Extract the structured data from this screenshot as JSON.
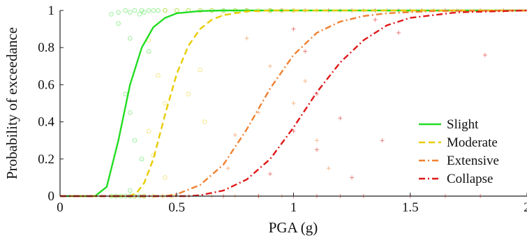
{
  "chart_data": {
    "type": "line",
    "xlabel": "PGA (g)",
    "ylabel": "Probability of exceedance",
    "xlim": [
      0,
      2
    ],
    "ylim": [
      0,
      1
    ],
    "xticks": [
      0,
      0.5,
      1,
      1.5,
      2
    ],
    "xtick_labels": [
      "0",
      "0.5",
      "1",
      "1.5",
      "2"
    ],
    "yticks": [
      0,
      0.2,
      0.4,
      0.6,
      0.8,
      1
    ],
    "ytick_labels": [
      "0",
      "0.2",
      "0.4",
      "0.6",
      "0.8",
      "1"
    ],
    "grid": false,
    "legend_position": "bottom-right",
    "series": [
      {
        "name": "Slight",
        "color": "#22dd22",
        "style": "solid",
        "marker": "circle",
        "curve": {
          "x": [
            0.15,
            0.2,
            0.25,
            0.3,
            0.35,
            0.4,
            0.45,
            0.5,
            0.6,
            0.7,
            0.8,
            1.0,
            2.0
          ],
          "y": [
            0,
            0.05,
            0.3,
            0.6,
            0.8,
            0.91,
            0.96,
            0.985,
            0.997,
            1,
            1,
            1,
            1
          ]
        },
        "points": [
          [
            0.22,
            0.98
          ],
          [
            0.25,
            0.99
          ],
          [
            0.28,
            1
          ],
          [
            0.3,
            0.99
          ],
          [
            0.32,
            1
          ],
          [
            0.34,
            0.98
          ],
          [
            0.35,
            1
          ],
          [
            0.36,
            0.99
          ],
          [
            0.38,
            1
          ],
          [
            0.4,
            1
          ],
          [
            0.42,
            1
          ],
          [
            0.45,
            1
          ],
          [
            0.5,
            1
          ],
          [
            0.55,
            1
          ],
          [
            0.6,
            1
          ],
          [
            0.65,
            1
          ],
          [
            0.7,
            1
          ],
          [
            0.75,
            1
          ],
          [
            0.8,
            1
          ],
          [
            0.9,
            1
          ],
          [
            0.25,
            0.93
          ],
          [
            0.3,
            0.85
          ],
          [
            0.38,
            0.78
          ],
          [
            0.28,
            0.55
          ],
          [
            0.3,
            0.45
          ],
          [
            0.32,
            0.3
          ],
          [
            0.35,
            0.2
          ],
          [
            0.3,
            0.03
          ],
          [
            0.22,
            0
          ],
          [
            0.24,
            0
          ],
          [
            0.26,
            0
          ],
          [
            0.28,
            0
          ],
          [
            0.3,
            0
          ],
          [
            0.32,
            0
          ],
          [
            0.34,
            0
          ],
          [
            0.36,
            0
          ]
        ]
      },
      {
        "name": "Moderate",
        "color": "#e8cc00",
        "style": "dashed",
        "marker": "circle",
        "curve": {
          "x": [
            0.3,
            0.33,
            0.36,
            0.4,
            0.45,
            0.5,
            0.55,
            0.6,
            0.65,
            0.7,
            0.8,
            0.9,
            2.0
          ],
          "y": [
            0,
            0.02,
            0.07,
            0.2,
            0.44,
            0.66,
            0.81,
            0.9,
            0.95,
            0.975,
            0.995,
            1,
            1
          ]
        },
        "points": [
          [
            0.45,
            1
          ],
          [
            0.5,
            1
          ],
          [
            0.55,
            1
          ],
          [
            0.6,
            1
          ],
          [
            0.65,
            1
          ],
          [
            0.7,
            0.98
          ],
          [
            0.75,
            1
          ],
          [
            0.8,
            1
          ],
          [
            0.85,
            1
          ],
          [
            0.9,
            1
          ],
          [
            0.95,
            1
          ],
          [
            1.0,
            1
          ],
          [
            0.38,
            0.84
          ],
          [
            0.42,
            0.65
          ],
          [
            0.45,
            0.5
          ],
          [
            0.38,
            0.35
          ],
          [
            0.4,
            0.22
          ],
          [
            0.45,
            0.1
          ],
          [
            0.55,
            0.55
          ],
          [
            0.6,
            0.68
          ],
          [
            0.62,
            0.4
          ],
          [
            0.32,
            0
          ],
          [
            0.36,
            0
          ],
          [
            0.4,
            0
          ],
          [
            0.44,
            0
          ],
          [
            0.48,
            0
          ]
        ]
      },
      {
        "name": "Extensive",
        "color": "#f08030",
        "style": "dashdot",
        "marker": "plus",
        "curve": {
          "x": [
            0.45,
            0.5,
            0.6,
            0.7,
            0.8,
            0.9,
            1.0,
            1.1,
            1.2,
            1.3,
            1.4,
            1.6,
            2.0
          ],
          "y": [
            0,
            0.01,
            0.06,
            0.17,
            0.36,
            0.58,
            0.76,
            0.88,
            0.94,
            0.97,
            0.985,
            0.997,
            1
          ]
        },
        "points": [
          [
            0.7,
            1
          ],
          [
            0.8,
            1
          ],
          [
            0.9,
            1
          ],
          [
            1.0,
            1
          ],
          [
            1.1,
            1
          ],
          [
            1.2,
            1
          ],
          [
            1.3,
            1
          ],
          [
            1.4,
            1
          ],
          [
            1.5,
            1
          ],
          [
            1.6,
            1
          ],
          [
            1.7,
            1
          ],
          [
            0.8,
            0.85
          ],
          [
            0.9,
            0.7
          ],
          [
            1.0,
            0.5
          ],
          [
            1.05,
            0.62
          ],
          [
            0.85,
            0.45
          ],
          [
            0.75,
            0.33
          ],
          [
            0.72,
            0.15
          ],
          [
            1.1,
            0.3
          ],
          [
            1.15,
            0.15
          ],
          [
            0.55,
            0
          ],
          [
            0.65,
            0
          ],
          [
            0.75,
            0
          ],
          [
            0.85,
            0
          ],
          [
            0.95,
            0
          ]
        ]
      },
      {
        "name": "Collapse",
        "color": "#e01818",
        "style": "dashdot",
        "marker": "plus",
        "curve": {
          "x": [
            0.55,
            0.6,
            0.7,
            0.8,
            0.9,
            1.0,
            1.1,
            1.2,
            1.3,
            1.4,
            1.5,
            1.7,
            2.0
          ],
          "y": [
            0,
            0.005,
            0.03,
            0.09,
            0.2,
            0.37,
            0.56,
            0.72,
            0.84,
            0.92,
            0.96,
            0.99,
            1
          ]
        },
        "points": [
          [
            0.95,
            1
          ],
          [
            1.05,
            1
          ],
          [
            1.15,
            1
          ],
          [
            1.25,
            1
          ],
          [
            1.35,
            1
          ],
          [
            1.45,
            1
          ],
          [
            1.55,
            1
          ],
          [
            1.65,
            1
          ],
          [
            1.8,
            1
          ],
          [
            1.9,
            1
          ],
          [
            1.0,
            0.9
          ],
          [
            1.05,
            0.78
          ],
          [
            1.35,
            0.95
          ],
          [
            1.45,
            0.88
          ],
          [
            1.82,
            0.76
          ],
          [
            1.1,
            0.55
          ],
          [
            1.2,
            0.42
          ],
          [
            1.38,
            0.3
          ],
          [
            1.0,
            0.35
          ],
          [
            1.1,
            0.25
          ],
          [
            0.9,
            0.12
          ],
          [
            1.25,
            0.1
          ],
          [
            0.7,
            0
          ],
          [
            0.85,
            0
          ],
          [
            1.0,
            0
          ],
          [
            1.1,
            0
          ],
          [
            1.2,
            0
          ],
          [
            1.3,
            0
          ],
          [
            1.5,
            0
          ],
          [
            1.65,
            0
          ],
          [
            1.8,
            0
          ]
        ]
      }
    ]
  }
}
